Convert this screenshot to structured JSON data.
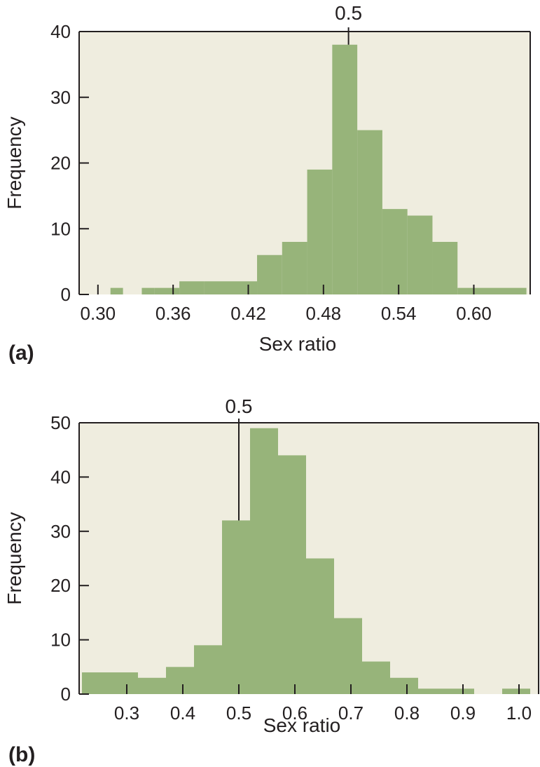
{
  "chart_data": [
    {
      "type": "histogram",
      "panel_label": "(a)",
      "xlabel": "Sex ratio",
      "ylabel": "Frequency",
      "xlim": [
        0.285,
        0.645
      ],
      "ylim": [
        0,
        40
      ],
      "x_ticks": [
        0.3,
        0.36,
        0.42,
        0.48,
        0.54,
        0.6
      ],
      "x_tick_labels": [
        "0.30",
        "0.36",
        "0.42",
        "0.48",
        "0.54",
        "0.60"
      ],
      "y_ticks": [
        0,
        10,
        20,
        30,
        40
      ],
      "y_tick_labels": [
        "0",
        "10",
        "20",
        "30",
        "40"
      ],
      "bins": [
        {
          "x0": 0.31,
          "x1": 0.32,
          "count": 1
        },
        {
          "x0": 0.335,
          "x1": 0.345,
          "count": 1
        },
        {
          "x0": 0.345,
          "x1": 0.365,
          "count": 1
        },
        {
          "x0": 0.365,
          "x1": 0.385,
          "count": 2
        },
        {
          "x0": 0.385,
          "x1": 0.427,
          "count": 2
        },
        {
          "x0": 0.427,
          "x1": 0.447,
          "count": 6
        },
        {
          "x0": 0.447,
          "x1": 0.467,
          "count": 8
        },
        {
          "x0": 0.467,
          "x1": 0.487,
          "count": 19
        },
        {
          "x0": 0.487,
          "x1": 0.507,
          "count": 38
        },
        {
          "x0": 0.507,
          "x1": 0.527,
          "count": 25
        },
        {
          "x0": 0.527,
          "x1": 0.547,
          "count": 13
        },
        {
          "x0": 0.547,
          "x1": 0.567,
          "count": 12
        },
        {
          "x0": 0.567,
          "x1": 0.587,
          "count": 8
        },
        {
          "x0": 0.587,
          "x1": 0.642,
          "count": 1
        }
      ],
      "marker": {
        "x": 0.5,
        "label": "0.5"
      }
    },
    {
      "type": "histogram",
      "panel_label": "(b)",
      "xlabel": "Sex ratio",
      "ylabel": "Frequency",
      "xlim": [
        0.215,
        1.035
      ],
      "ylim": [
        0,
        50
      ],
      "x_ticks": [
        0.3,
        0.4,
        0.5,
        0.6,
        0.7,
        0.8,
        0.9,
        1.0
      ],
      "x_tick_labels": [
        "0.3",
        "0.4",
        "0.5",
        "0.6",
        "0.7",
        "0.8",
        "0.9",
        "1.0"
      ],
      "y_ticks": [
        0,
        10,
        20,
        30,
        40,
        50
      ],
      "y_tick_labels": [
        "0",
        "10",
        "20",
        "30",
        "40",
        "50"
      ],
      "bins": [
        {
          "x0": 0.22,
          "x1": 0.32,
          "count": 4
        },
        {
          "x0": 0.32,
          "x1": 0.37,
          "count": 3
        },
        {
          "x0": 0.37,
          "x1": 0.42,
          "count": 5
        },
        {
          "x0": 0.42,
          "x1": 0.47,
          "count": 9
        },
        {
          "x0": 0.47,
          "x1": 0.52,
          "count": 32
        },
        {
          "x0": 0.52,
          "x1": 0.57,
          "count": 49
        },
        {
          "x0": 0.57,
          "x1": 0.62,
          "count": 44
        },
        {
          "x0": 0.62,
          "x1": 0.67,
          "count": 25
        },
        {
          "x0": 0.67,
          "x1": 0.72,
          "count": 14
        },
        {
          "x0": 0.72,
          "x1": 0.77,
          "count": 6
        },
        {
          "x0": 0.77,
          "x1": 0.82,
          "count": 3
        },
        {
          "x0": 0.82,
          "x1": 0.92,
          "count": 1
        },
        {
          "x0": 0.97,
          "x1": 1.02,
          "count": 1
        }
      ],
      "marker": {
        "x": 0.5,
        "label": "0.5"
      }
    }
  ],
  "colors": {
    "plot_background": "#efeddf",
    "bar_fill": "#97b47a",
    "axis": "#231f20"
  }
}
